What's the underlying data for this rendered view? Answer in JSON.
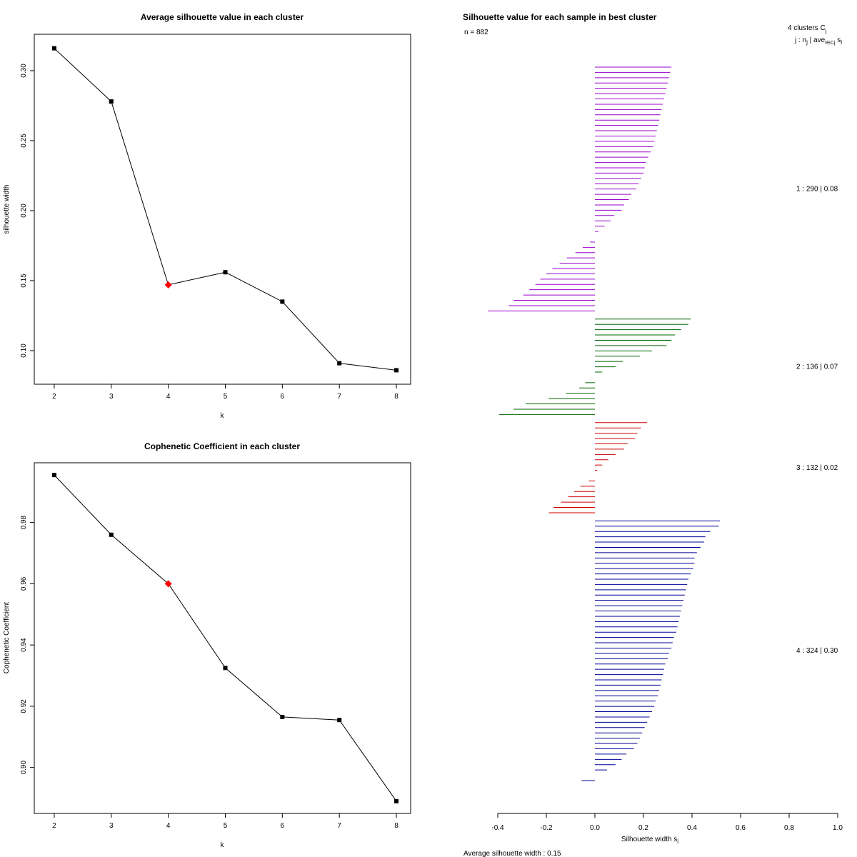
{
  "chart_data": [
    {
      "type": "line",
      "title": "Average silhouette value in each cluster",
      "xlabel": "k",
      "ylabel": "silhouette width",
      "x": [
        2,
        3,
        4,
        5,
        6,
        7,
        8
      ],
      "values": [
        0.316,
        0.278,
        0.147,
        0.156,
        0.135,
        0.091,
        0.086
      ],
      "highlight_x": 4,
      "highlight_color": "#ff0000",
      "xlim": [
        1.65,
        8.25
      ],
      "ylim": [
        0.076,
        0.326
      ],
      "xticks": [
        2,
        3,
        4,
        5,
        6,
        7,
        8
      ],
      "yticks": [
        0.1,
        0.15,
        0.2,
        0.25,
        0.3
      ],
      "ytick_labels": [
        "0.10",
        "0.15",
        "0.20",
        "0.25",
        "0.30"
      ]
    },
    {
      "type": "line",
      "title": "Cophenetic Coefficient in each cluster",
      "xlabel": "k",
      "ylabel": "Cophenetic Coefficient",
      "x": [
        2,
        3,
        4,
        5,
        6,
        7,
        8
      ],
      "values": [
        0.9955,
        0.976,
        0.96,
        0.9325,
        0.9165,
        0.9155,
        0.889
      ],
      "highlight_x": 4,
      "highlight_color": "#ff0000",
      "xlim": [
        1.65,
        8.25
      ],
      "ylim": [
        0.885,
        0.9995
      ],
      "xticks": [
        2,
        3,
        4,
        5,
        6,
        7,
        8
      ],
      "yticks": [
        0.9,
        0.92,
        0.94,
        0.96,
        0.98
      ],
      "ytick_labels": [
        "0.90",
        "0.92",
        "0.94",
        "0.96",
        "0.98"
      ]
    },
    {
      "type": "bar",
      "orientation": "horizontal",
      "title": "Silhouette value for each sample in best cluster",
      "n_label": "n = 882",
      "header_line1": "4  clusters  C",
      "header_line1_sub": "j",
      "header_line2": "j :  n",
      "header_line2_sub": "j",
      "header_line2_rest": " | ave",
      "header_line2_sub2": "i∈Cj",
      "header_line2_end": " s",
      "header_line2_sub3": "i",
      "xlabel": "Silhouette width s",
      "xlabel_sub": "i",
      "xlim": [
        -0.4,
        1.0
      ],
      "xticks": [
        -0.4,
        -0.2,
        0.0,
        0.2,
        0.4,
        0.6,
        0.8,
        1.0
      ],
      "xtick_labels": [
        "-0.4",
        "-0.2",
        "0.0",
        "0.2",
        "0.4",
        "0.6",
        "0.8",
        "1.0"
      ],
      "avg_width_text": "Average silhouette width :  0.15",
      "clusters": [
        {
          "label": "1 :   290  |  0.08",
          "color": "#9900cc",
          "values": [
            0.315,
            0.31,
            0.305,
            0.3,
            0.295,
            0.29,
            0.285,
            0.28,
            0.275,
            0.27,
            0.265,
            0.26,
            0.255,
            0.25,
            0.245,
            0.24,
            0.23,
            0.22,
            0.21,
            0.205,
            0.2,
            0.19,
            0.18,
            0.17,
            0.15,
            0.14,
            0.12,
            0.11,
            0.08,
            0.065,
            0.04,
            0.015,
            0.0,
            -0.02,
            -0.05,
            -0.08,
            -0.115,
            -0.145,
            -0.175,
            -0.2,
            -0.225,
            -0.245,
            -0.27,
            -0.295,
            -0.335,
            -0.355,
            -0.44
          ]
        },
        {
          "label": "2 :   136  |  0.07",
          "color": "#006600",
          "values": [
            0.395,
            0.385,
            0.355,
            0.33,
            0.315,
            0.295,
            0.235,
            0.185,
            0.115,
            0.085,
            0.03,
            0.0,
            -0.04,
            -0.065,
            -0.12,
            -0.19,
            -0.285,
            -0.335,
            -0.395
          ]
        },
        {
          "label": "3 :   132  |  0.02",
          "color": "#cc0000",
          "values": [
            0.215,
            0.19,
            0.175,
            0.165,
            0.135,
            0.12,
            0.085,
            0.055,
            0.03,
            0.01,
            0.0,
            -0.025,
            -0.06,
            -0.085,
            -0.11,
            -0.14,
            -0.17,
            -0.19
          ]
        },
        {
          "label": "4 :   324  |  0.30",
          "color": "#000099",
          "values": [
            0.515,
            0.51,
            0.475,
            0.455,
            0.45,
            0.435,
            0.42,
            0.41,
            0.41,
            0.405,
            0.395,
            0.385,
            0.38,
            0.375,
            0.37,
            0.365,
            0.36,
            0.355,
            0.35,
            0.345,
            0.34,
            0.335,
            0.325,
            0.32,
            0.315,
            0.305,
            0.3,
            0.29,
            0.285,
            0.28,
            0.275,
            0.27,
            0.265,
            0.26,
            0.25,
            0.245,
            0.235,
            0.225,
            0.215,
            0.205,
            0.195,
            0.185,
            0.175,
            0.16,
            0.13,
            0.11,
            0.085,
            0.05,
            0.0,
            -0.055
          ]
        }
      ]
    }
  ]
}
